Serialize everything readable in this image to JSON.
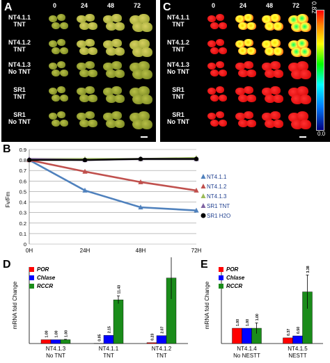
{
  "panel_A": {
    "label": "A",
    "time_labels": [
      "0",
      "24",
      "48",
      "72"
    ],
    "row_labels": [
      [
        "NT4.1.1",
        "TNT"
      ],
      [
        "NT4.1.2",
        "TNT"
      ],
      [
        "NT4.1.3",
        "No TNT"
      ],
      [
        "SR1",
        "TNT"
      ],
      [
        "SR1",
        "No TNT"
      ]
    ]
  },
  "panel_C": {
    "label": "C",
    "time_labels": [
      "0",
      "24",
      "48",
      "72"
    ],
    "row_labels": [
      [
        "NT4.1.1",
        "TNT"
      ],
      [
        "NT4.1.2",
        "TNT"
      ],
      [
        "NT4.1.3",
        "No TNT"
      ],
      [
        "SR1",
        "TNT"
      ],
      [
        "SR1",
        "No TNT"
      ]
    ],
    "colorbar_max": "0.82",
    "colorbar_min": "0.0"
  },
  "panel_B": {
    "label": "B"
  },
  "panel_D": {
    "label": "D"
  },
  "panel_E": {
    "label": "E"
  },
  "chart_data": [
    {
      "type": "line",
      "ylabel": "Fv/Fm",
      "categories": [
        "0H",
        "24H",
        "48H",
        "72H"
      ],
      "ylim": [
        0,
        0.9
      ],
      "yticks": [
        "0",
        "0.1",
        "0.2",
        "0.3",
        "0.4",
        "0.5",
        "0.6",
        "0.7",
        "0.8",
        "0.9"
      ],
      "legend_position": "right",
      "series": [
        {
          "name": "NT4.1.1",
          "color": "#4f81bd",
          "marker": "triangle",
          "values": [
            0.8,
            0.51,
            0.35,
            0.32
          ]
        },
        {
          "name": "NT4.1.2",
          "color": "#c0504d",
          "marker": "triangle",
          "values": [
            0.8,
            0.69,
            0.59,
            0.51
          ]
        },
        {
          "name": "NT4.1.3",
          "color": "#9bbb59",
          "marker": "triangle",
          "values": [
            0.81,
            0.81,
            0.81,
            0.82
          ]
        },
        {
          "name": "SR1 TNT",
          "color": "#8064a2",
          "marker": "triangle",
          "values": [
            0.81,
            0.8,
            0.81,
            0.81
          ]
        },
        {
          "name": "SR1 H2O",
          "color": "#000000",
          "marker": "circle",
          "values": [
            0.8,
            0.8,
            0.81,
            0.81
          ]
        }
      ]
    },
    {
      "type": "bar",
      "ylabel": "mRNA fold Change",
      "categories": [
        [
          "NT4.1.3",
          "No TNT"
        ],
        [
          "NT4.1.1",
          "TNT"
        ],
        [
          "NT4.1.2",
          "TNT"
        ]
      ],
      "ylim": [
        0,
        20
      ],
      "series": [
        {
          "name": "POR",
          "color": "#ff0000",
          "values": [
            1.0,
            0.05,
            0.23
          ],
          "labels": [
            "1.00",
            "0.05",
            "0.23"
          ]
        },
        {
          "name": "Chlase",
          "color": "#0000ff",
          "values": [
            1.0,
            2.15,
            2.07
          ],
          "labels": [
            "1.00",
            "2.15",
            "2.07"
          ]
        },
        {
          "name": "RCCR",
          "color": "#1a8c1a",
          "values": [
            1.0,
            11.43,
            17.14
          ],
          "labels": [
            "1.00",
            "11.43",
            "17.14"
          ],
          "errors": [
            0.1,
            1.0,
            5.5
          ]
        }
      ]
    },
    {
      "type": "bar",
      "ylabel": "mRNA fold Change",
      "categories": [
        [
          "NT4.1.4",
          "No NESTT"
        ],
        [
          "NT4.1.5",
          "NESTT"
        ]
      ],
      "ylim": [
        0,
        5
      ],
      "series": [
        {
          "name": "POR",
          "color": "#ff0000",
          "values": [
            1.0,
            0.37
          ],
          "labels": [
            "1.00",
            "0.37"
          ]
        },
        {
          "name": "Chlase",
          "color": "#0000ff",
          "values": [
            1.0,
            0.5
          ],
          "labels": [
            "1.00",
            "0.50"
          ]
        },
        {
          "name": "RCCR",
          "color": "#1a8c1a",
          "values": [
            1.0,
            3.38
          ],
          "labels": [
            "1.00",
            "3.38"
          ],
          "errors": [
            0.35,
            1.1
          ]
        }
      ]
    }
  ]
}
